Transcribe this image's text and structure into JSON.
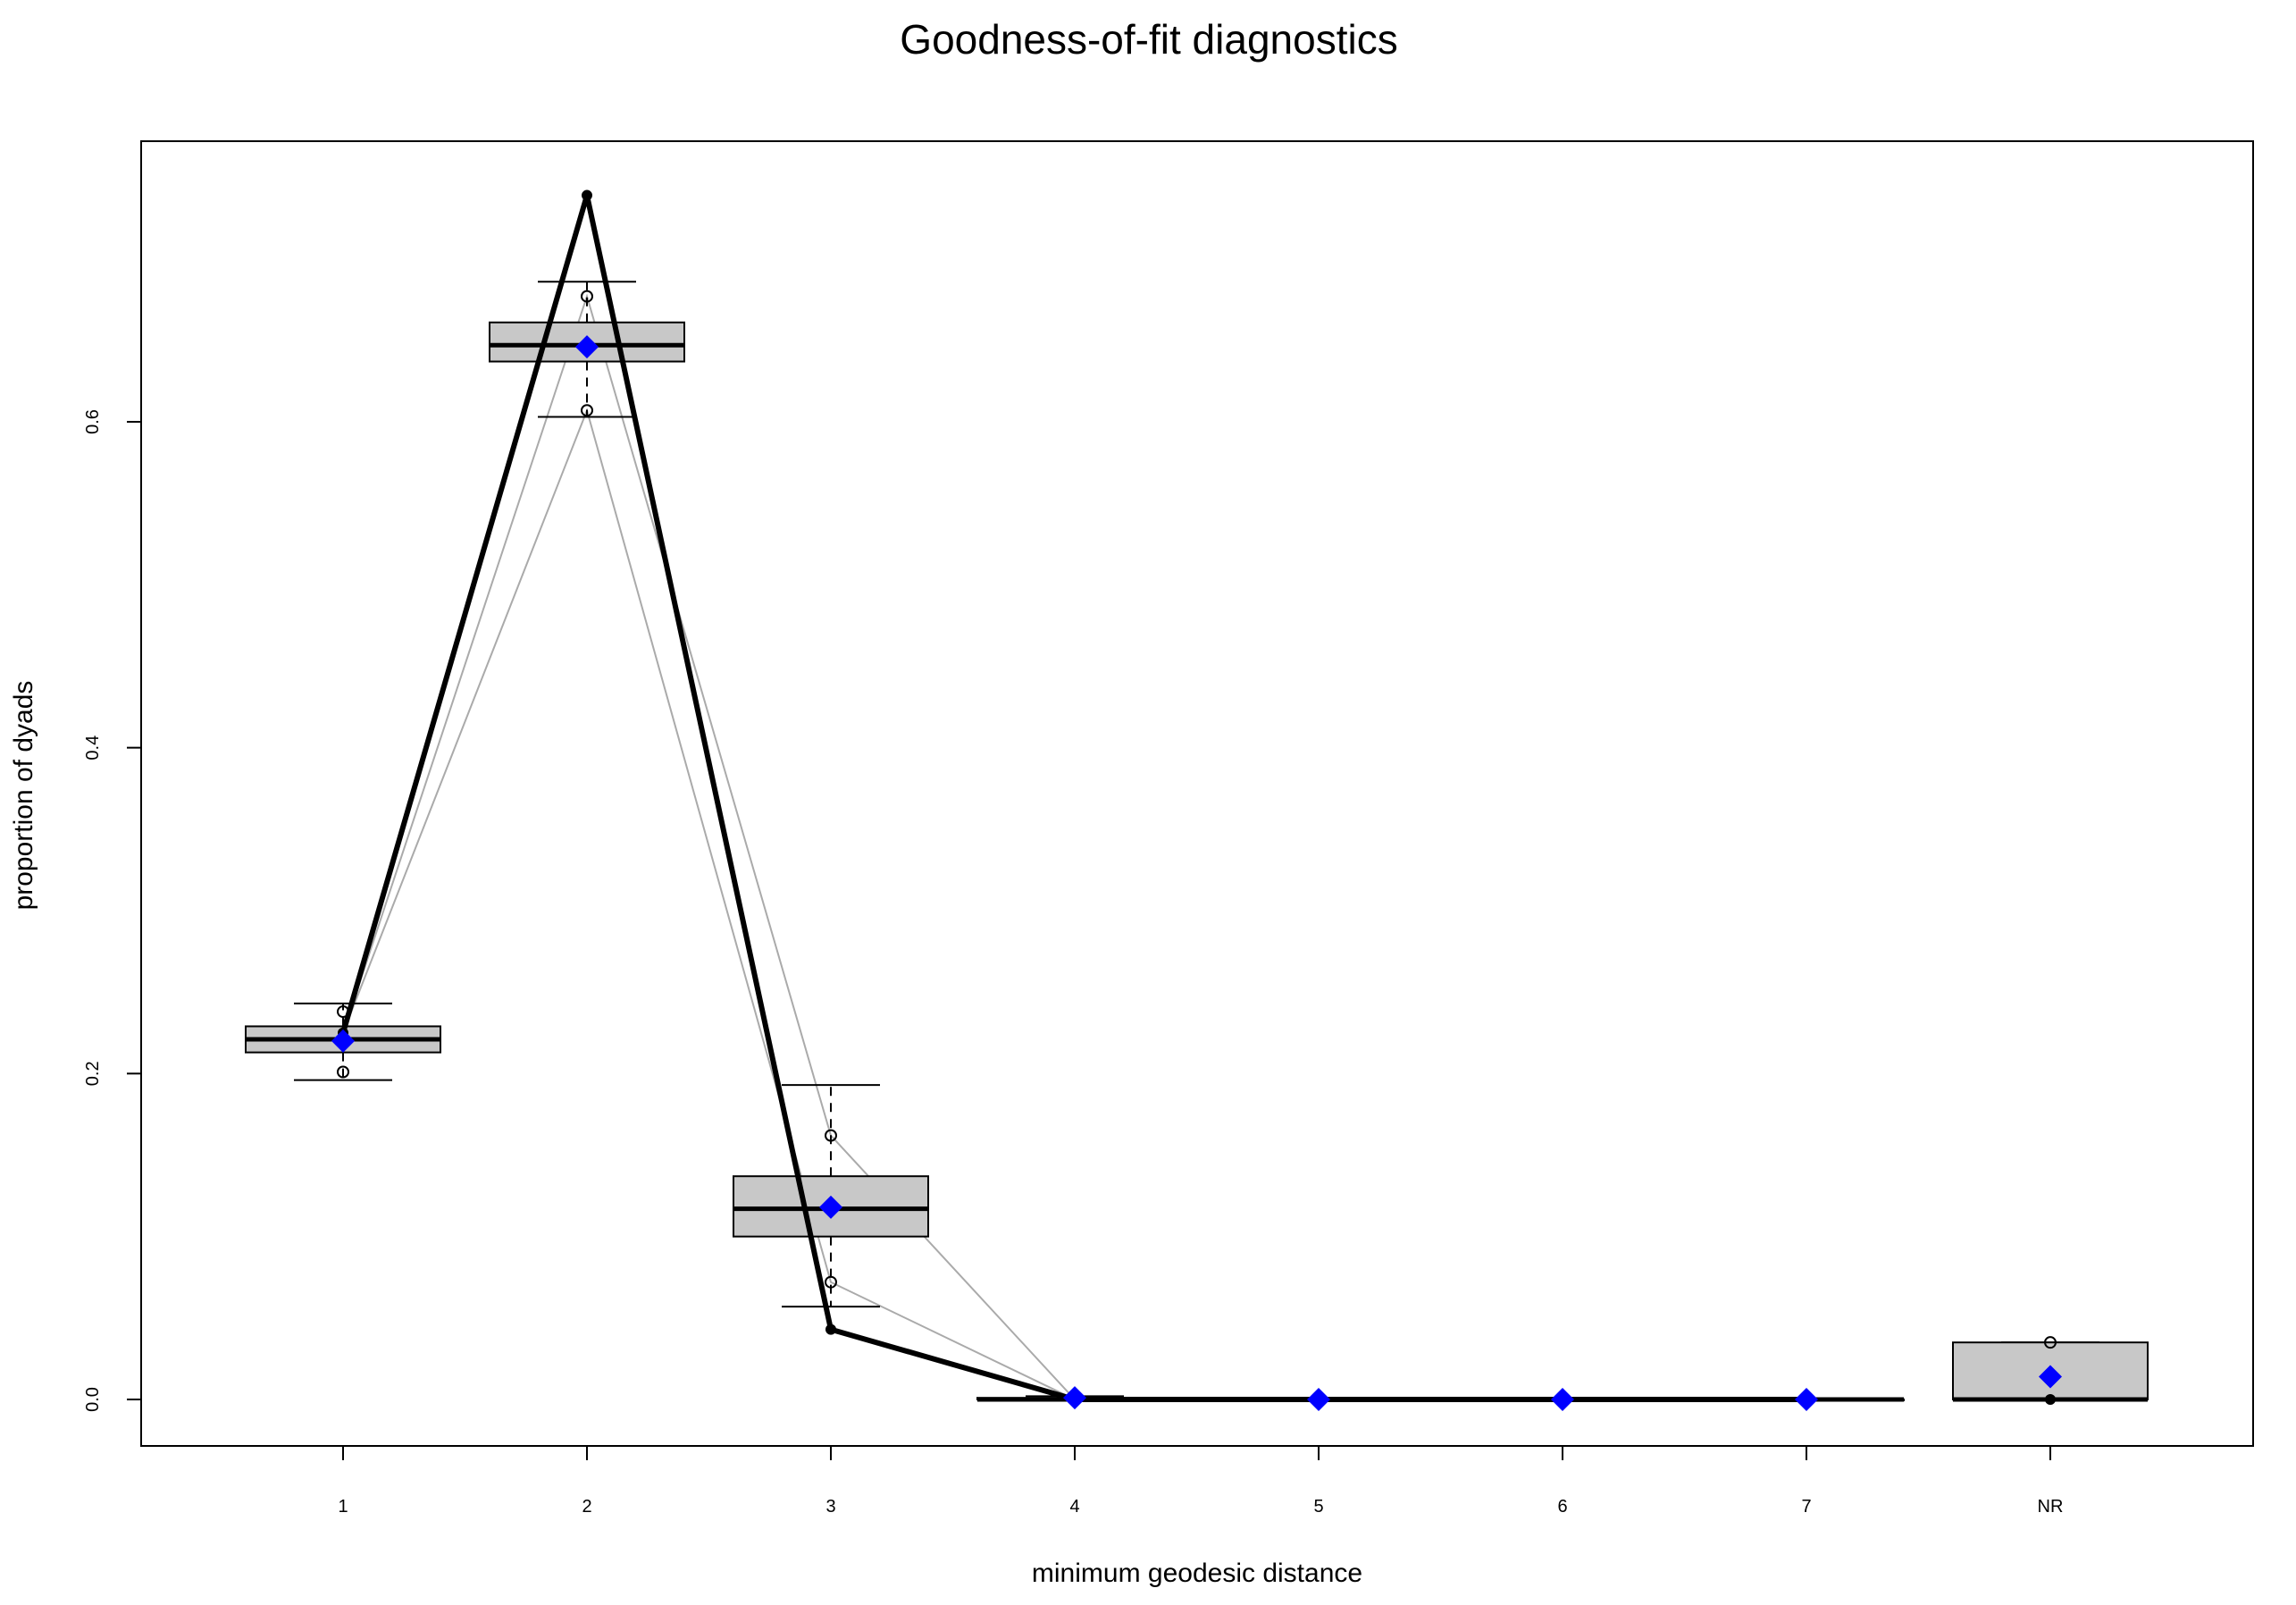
{
  "chart_data": {
    "type": "box",
    "title": "Goodness-of-fit diagnostics",
    "xlabel": "minimum geodesic distance",
    "ylabel": "proportion of dyads",
    "categories": [
      "1",
      "2",
      "3",
      "4",
      "5",
      "6",
      "7",
      "NR"
    ],
    "y_ticks": [
      "0.0",
      "0.2",
      "0.4",
      "0.6"
    ],
    "ylim": [
      -0.03,
      0.77
    ],
    "boxes": [
      {
        "category": "1",
        "whisker_low": 0.196,
        "q1": 0.213,
        "median": 0.221,
        "q3": 0.229,
        "whisker_high": 0.243
      },
      {
        "category": "2",
        "whisker_low": 0.603,
        "q1": 0.637,
        "median": 0.647,
        "q3": 0.661,
        "whisker_high": 0.686
      },
      {
        "category": "3",
        "whisker_low": 0.057,
        "q1": 0.1,
        "median": 0.117,
        "q3": 0.137,
        "whisker_high": 0.193
      },
      {
        "category": "4",
        "whisker_low": 0.0,
        "q1": 0.0,
        "median": 0.0,
        "q3": 0.001,
        "whisker_high": 0.002
      },
      {
        "category": "5",
        "whisker_low": 0.0,
        "q1": 0.0,
        "median": 0.0,
        "q3": 0.0,
        "whisker_high": 0.0
      },
      {
        "category": "6",
        "whisker_low": 0.0,
        "q1": 0.0,
        "median": 0.0,
        "q3": 0.0,
        "whisker_high": 0.0
      },
      {
        "category": "7",
        "whisker_low": 0.0,
        "q1": 0.0,
        "median": 0.0,
        "q3": 0.0,
        "whisker_high": 0.0
      },
      {
        "category": "NR",
        "whisker_low": 0.0,
        "q1": 0.0,
        "median": 0.0,
        "q3": 0.035,
        "whisker_high": 0.035
      }
    ],
    "outliers": [
      {
        "category": "1",
        "y": 0.238
      },
      {
        "category": "1",
        "y": 0.201
      },
      {
        "category": "2",
        "y": 0.677
      },
      {
        "category": "2",
        "y": 0.607
      },
      {
        "category": "3",
        "y": 0.162
      },
      {
        "category": "3",
        "y": 0.072
      },
      {
        "category": "NR",
        "y": 0.035
      }
    ],
    "series": [
      {
        "style": "observed",
        "color": "#000000",
        "values": [
          0.225,
          0.739,
          0.043,
          0.0,
          0.0,
          0.0,
          0.0,
          0.0
        ]
      },
      {
        "style": "simulation-range-upper",
        "color": "#aaaaaa",
        "values": [
          0.225,
          0.677,
          0.162,
          0.0,
          0.0,
          0.0,
          0.0,
          null
        ]
      },
      {
        "style": "simulation-range-lower",
        "color": "#aaaaaa",
        "values": [
          0.225,
          0.607,
          0.072,
          0.0,
          0.0,
          0.0,
          0.0,
          null
        ]
      },
      {
        "style": "simulated-mean",
        "color": "#0000ff",
        "marker": "diamond",
        "values": [
          0.22,
          0.646,
          0.118,
          0.001,
          0.0,
          0.0,
          0.0,
          0.014
        ]
      }
    ]
  }
}
